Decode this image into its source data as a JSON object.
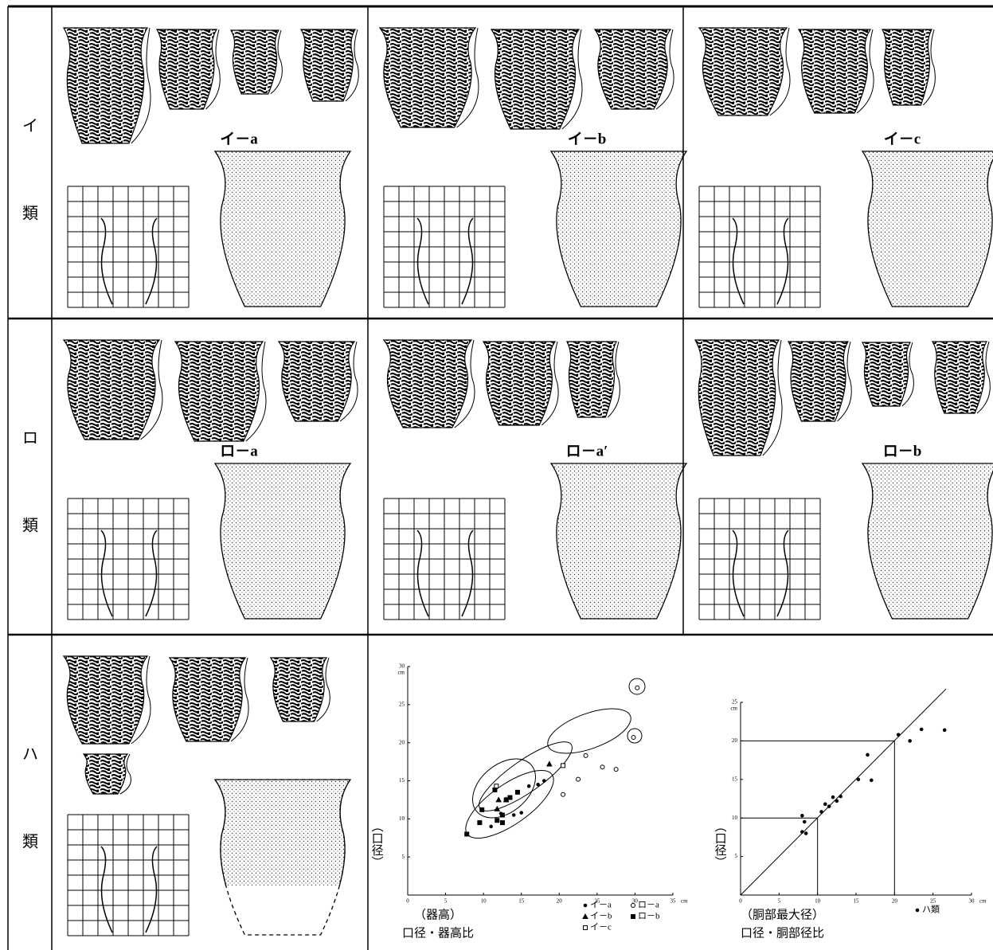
{
  "rows": [
    {
      "mark": "イ",
      "suffix": "類",
      "types": [
        "イ－a",
        "イ－b",
        "イ－c"
      ]
    },
    {
      "mark": "ロ",
      "suffix": "類",
      "types": [
        "ロ－a",
        "ロ－a′",
        "ロ－b"
      ]
    },
    {
      "mark": "ハ",
      "suffix": "類"
    }
  ],
  "charts": [
    {
      "type": "scatter",
      "title": "口径・器高比",
      "x_label": "（器高）",
      "y_label": "（口径）",
      "unit": "cm",
      "xlim": [
        0,
        35
      ],
      "ylim": [
        0,
        30
      ],
      "xticks": [
        0,
        5,
        10,
        15,
        20,
        25,
        30,
        35
      ],
      "yticks": [
        5,
        10,
        15,
        20,
        25,
        30
      ],
      "series": [
        {
          "name": "イ－a",
          "marker": "dot",
          "x": [
            11,
            12.3,
            14,
            15,
            16,
            17.2,
            18
          ],
          "y": [
            9,
            10.7,
            10.5,
            10.8,
            14.3,
            14.5,
            15
          ]
        },
        {
          "name": "イ－b",
          "marker": "triangle",
          "x": [
            11.8,
            12,
            13,
            18.7
          ],
          "y": [
            11.3,
            12.5,
            12.5,
            17.2
          ]
        },
        {
          "name": "イ－c",
          "marker": "open-square",
          "x": [
            11.7,
            20.5
          ],
          "y": [
            14.3,
            17
          ]
        },
        {
          "name": "ロ－a",
          "marker": "circle",
          "x": [
            20.5,
            22.5,
            23.5,
            25.7,
            27.5,
            30.3,
            29.8
          ],
          "y": [
            13.2,
            15.2,
            18.3,
            16.8,
            16.5,
            27.2,
            20.7
          ]
        },
        {
          "name": "ロ－b",
          "marker": "square",
          "x": [
            7.8,
            9.5,
            9.8,
            11.8,
            12.5,
            12.5,
            13,
            13.5,
            14.5,
            11.5
          ],
          "y": [
            8,
            9.5,
            11.2,
            9.8,
            10.5,
            9.5,
            12.5,
            12.8,
            13.5,
            13.8
          ]
        }
      ]
    },
    {
      "type": "scatter",
      "title": "口径・胴部径比",
      "x_label": "（胴部最大径）",
      "y_label": "（口径）",
      "unit": "cm",
      "xlim": [
        0,
        30
      ],
      "ylim": [
        0,
        25
      ],
      "xticks": [
        0,
        5,
        10,
        15,
        20,
        25,
        30
      ],
      "yticks": [
        5,
        10,
        15,
        20,
        25
      ],
      "guides": [
        10,
        20
      ],
      "series": [
        {
          "name": "ハ類",
          "marker": "dot",
          "x": [
            8,
            8.3,
            8,
            8.5,
            10.5,
            11,
            11.5,
            12,
            12.5,
            13,
            15.3,
            16.5,
            17,
            22,
            20.5,
            23.5,
            26.5
          ],
          "y": [
            10.3,
            9.5,
            8.2,
            8,
            10.8,
            11.8,
            11.5,
            12.7,
            12.2,
            12.8,
            15,
            18.2,
            14.9,
            20,
            20.8,
            21.5,
            21.4
          ]
        }
      ]
    }
  ]
}
